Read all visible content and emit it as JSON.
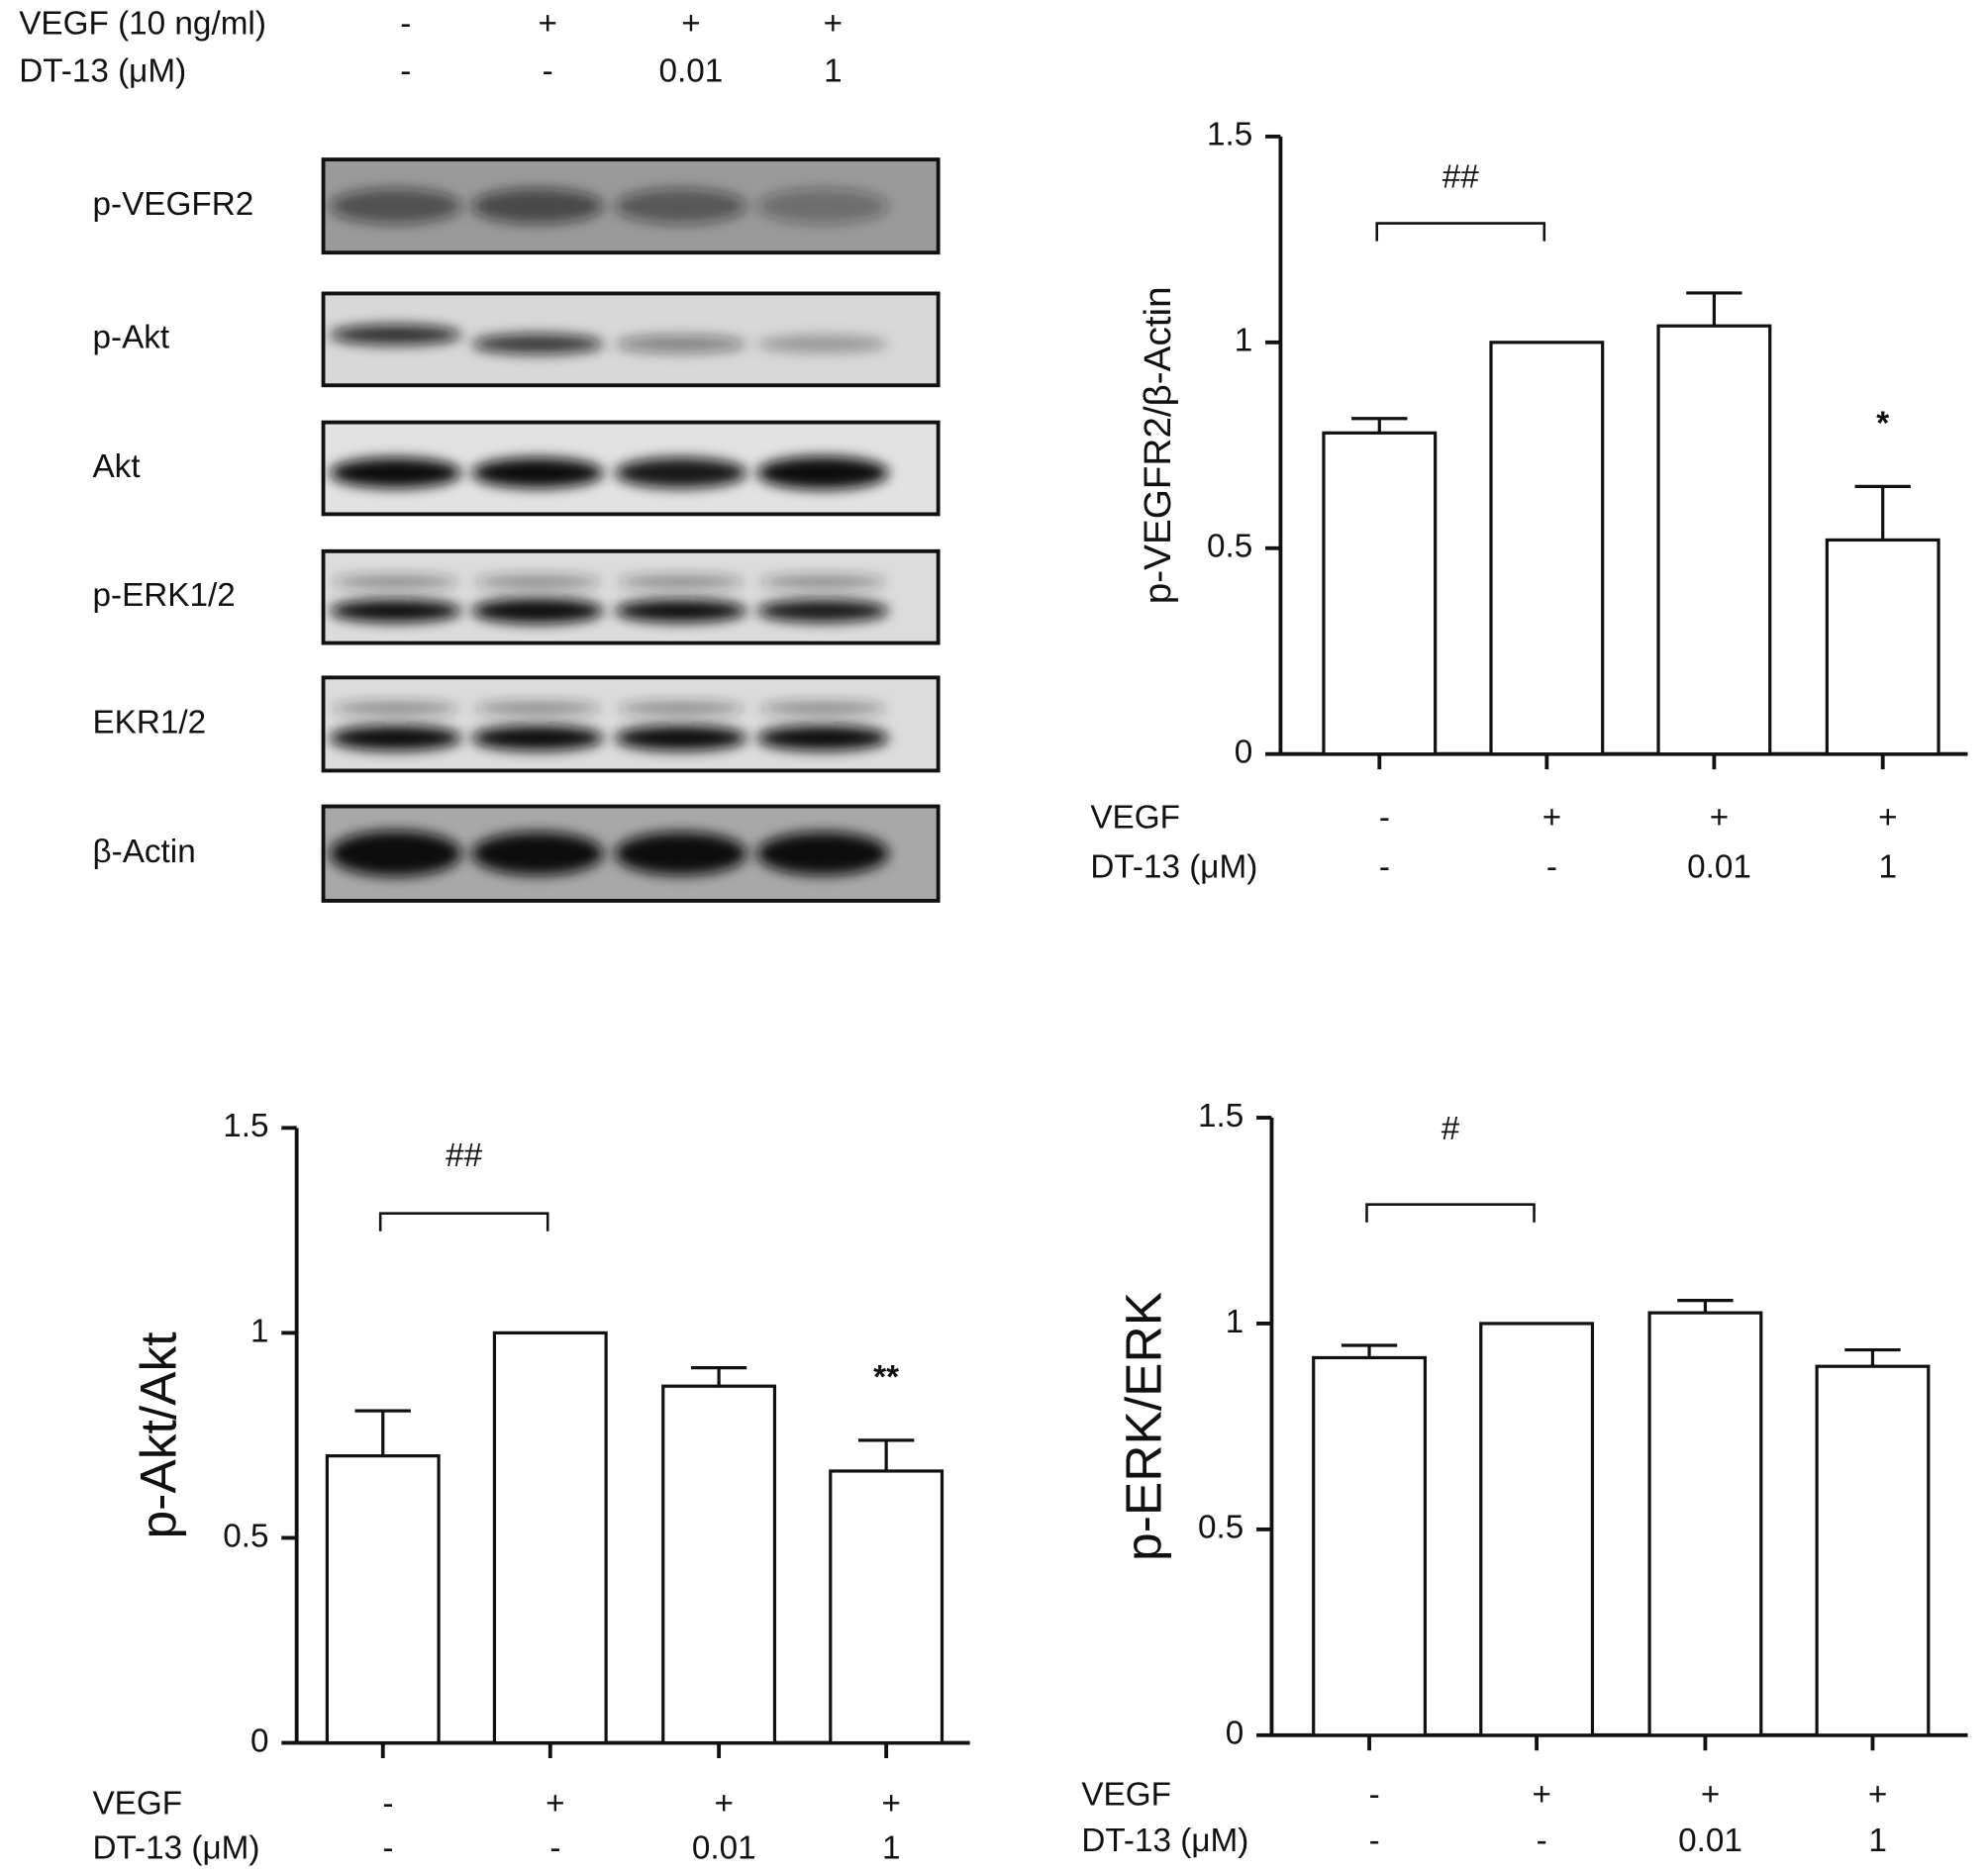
{
  "blot": {
    "conditions": [
      {
        "label": "VEGF (10 ng/ml)",
        "values": [
          "-",
          "+",
          "+",
          "+"
        ]
      },
      {
        "label": "DT-13 (μM)",
        "values": [
          "-",
          "-",
          "0.01",
          "1"
        ]
      }
    ],
    "rows": [
      "p-VEGFR2",
      "p-Akt",
      "Akt",
      "p-ERK1/2",
      "EKR1/2",
      "β-Actin"
    ]
  },
  "chart_data": [
    {
      "type": "bar",
      "ylabel": "p-VEGFR2/β-Actin",
      "ylim": [
        0,
        1.5
      ],
      "yticks": [
        0,
        0.5,
        1,
        1.5
      ],
      "values": [
        0.78,
        1.0,
        1.04,
        0.52
      ],
      "errors": [
        0.035,
        0,
        0.08,
        0.13
      ],
      "annotations": [
        null,
        null,
        null,
        "*"
      ],
      "bracket": {
        "from": 0,
        "to": 1,
        "label": "##"
      },
      "conditions": [
        {
          "label": "VEGF",
          "values": [
            "-",
            "+",
            "+",
            "+"
          ]
        },
        {
          "label": "DT-13 (μM)",
          "values": [
            "-",
            "-",
            "0.01",
            "1"
          ]
        }
      ]
    },
    {
      "type": "bar",
      "ylabel": "p-Akt/Akt",
      "ylim": [
        0,
        1.5
      ],
      "yticks": [
        0,
        0.5,
        1,
        1.5
      ],
      "values": [
        0.7,
        1.0,
        0.87,
        0.663
      ],
      "errors": [
        0.11,
        0,
        0.045,
        0.075
      ],
      "annotations": [
        null,
        null,
        null,
        "**"
      ],
      "bracket": {
        "from": 0,
        "to": 1,
        "label": "##"
      },
      "conditions": [
        {
          "label": "VEGF",
          "values": [
            "-",
            "+",
            "+",
            "+"
          ]
        },
        {
          "label": "DT-13 (μM)",
          "values": [
            "-",
            "-",
            "0.01",
            "1"
          ]
        }
      ]
    },
    {
      "type": "bar",
      "ylabel": "p-ERK/ERK",
      "ylim": [
        0,
        1.5
      ],
      "yticks": [
        0,
        0.5,
        1,
        1.5
      ],
      "values": [
        0.917,
        1.0,
        1.026,
        0.896
      ],
      "errors": [
        0.03,
        0,
        0.03,
        0.04
      ],
      "annotations": [
        null,
        null,
        null,
        null
      ],
      "bracket": {
        "from": 0,
        "to": 1,
        "label": "#"
      },
      "conditions": [
        {
          "label": "VEGF",
          "values": [
            "-",
            "+",
            "+",
            "+"
          ]
        },
        {
          "label": "DT-13 (μM)",
          "values": [
            "-",
            "-",
            "0.01",
            "1"
          ]
        }
      ]
    }
  ]
}
